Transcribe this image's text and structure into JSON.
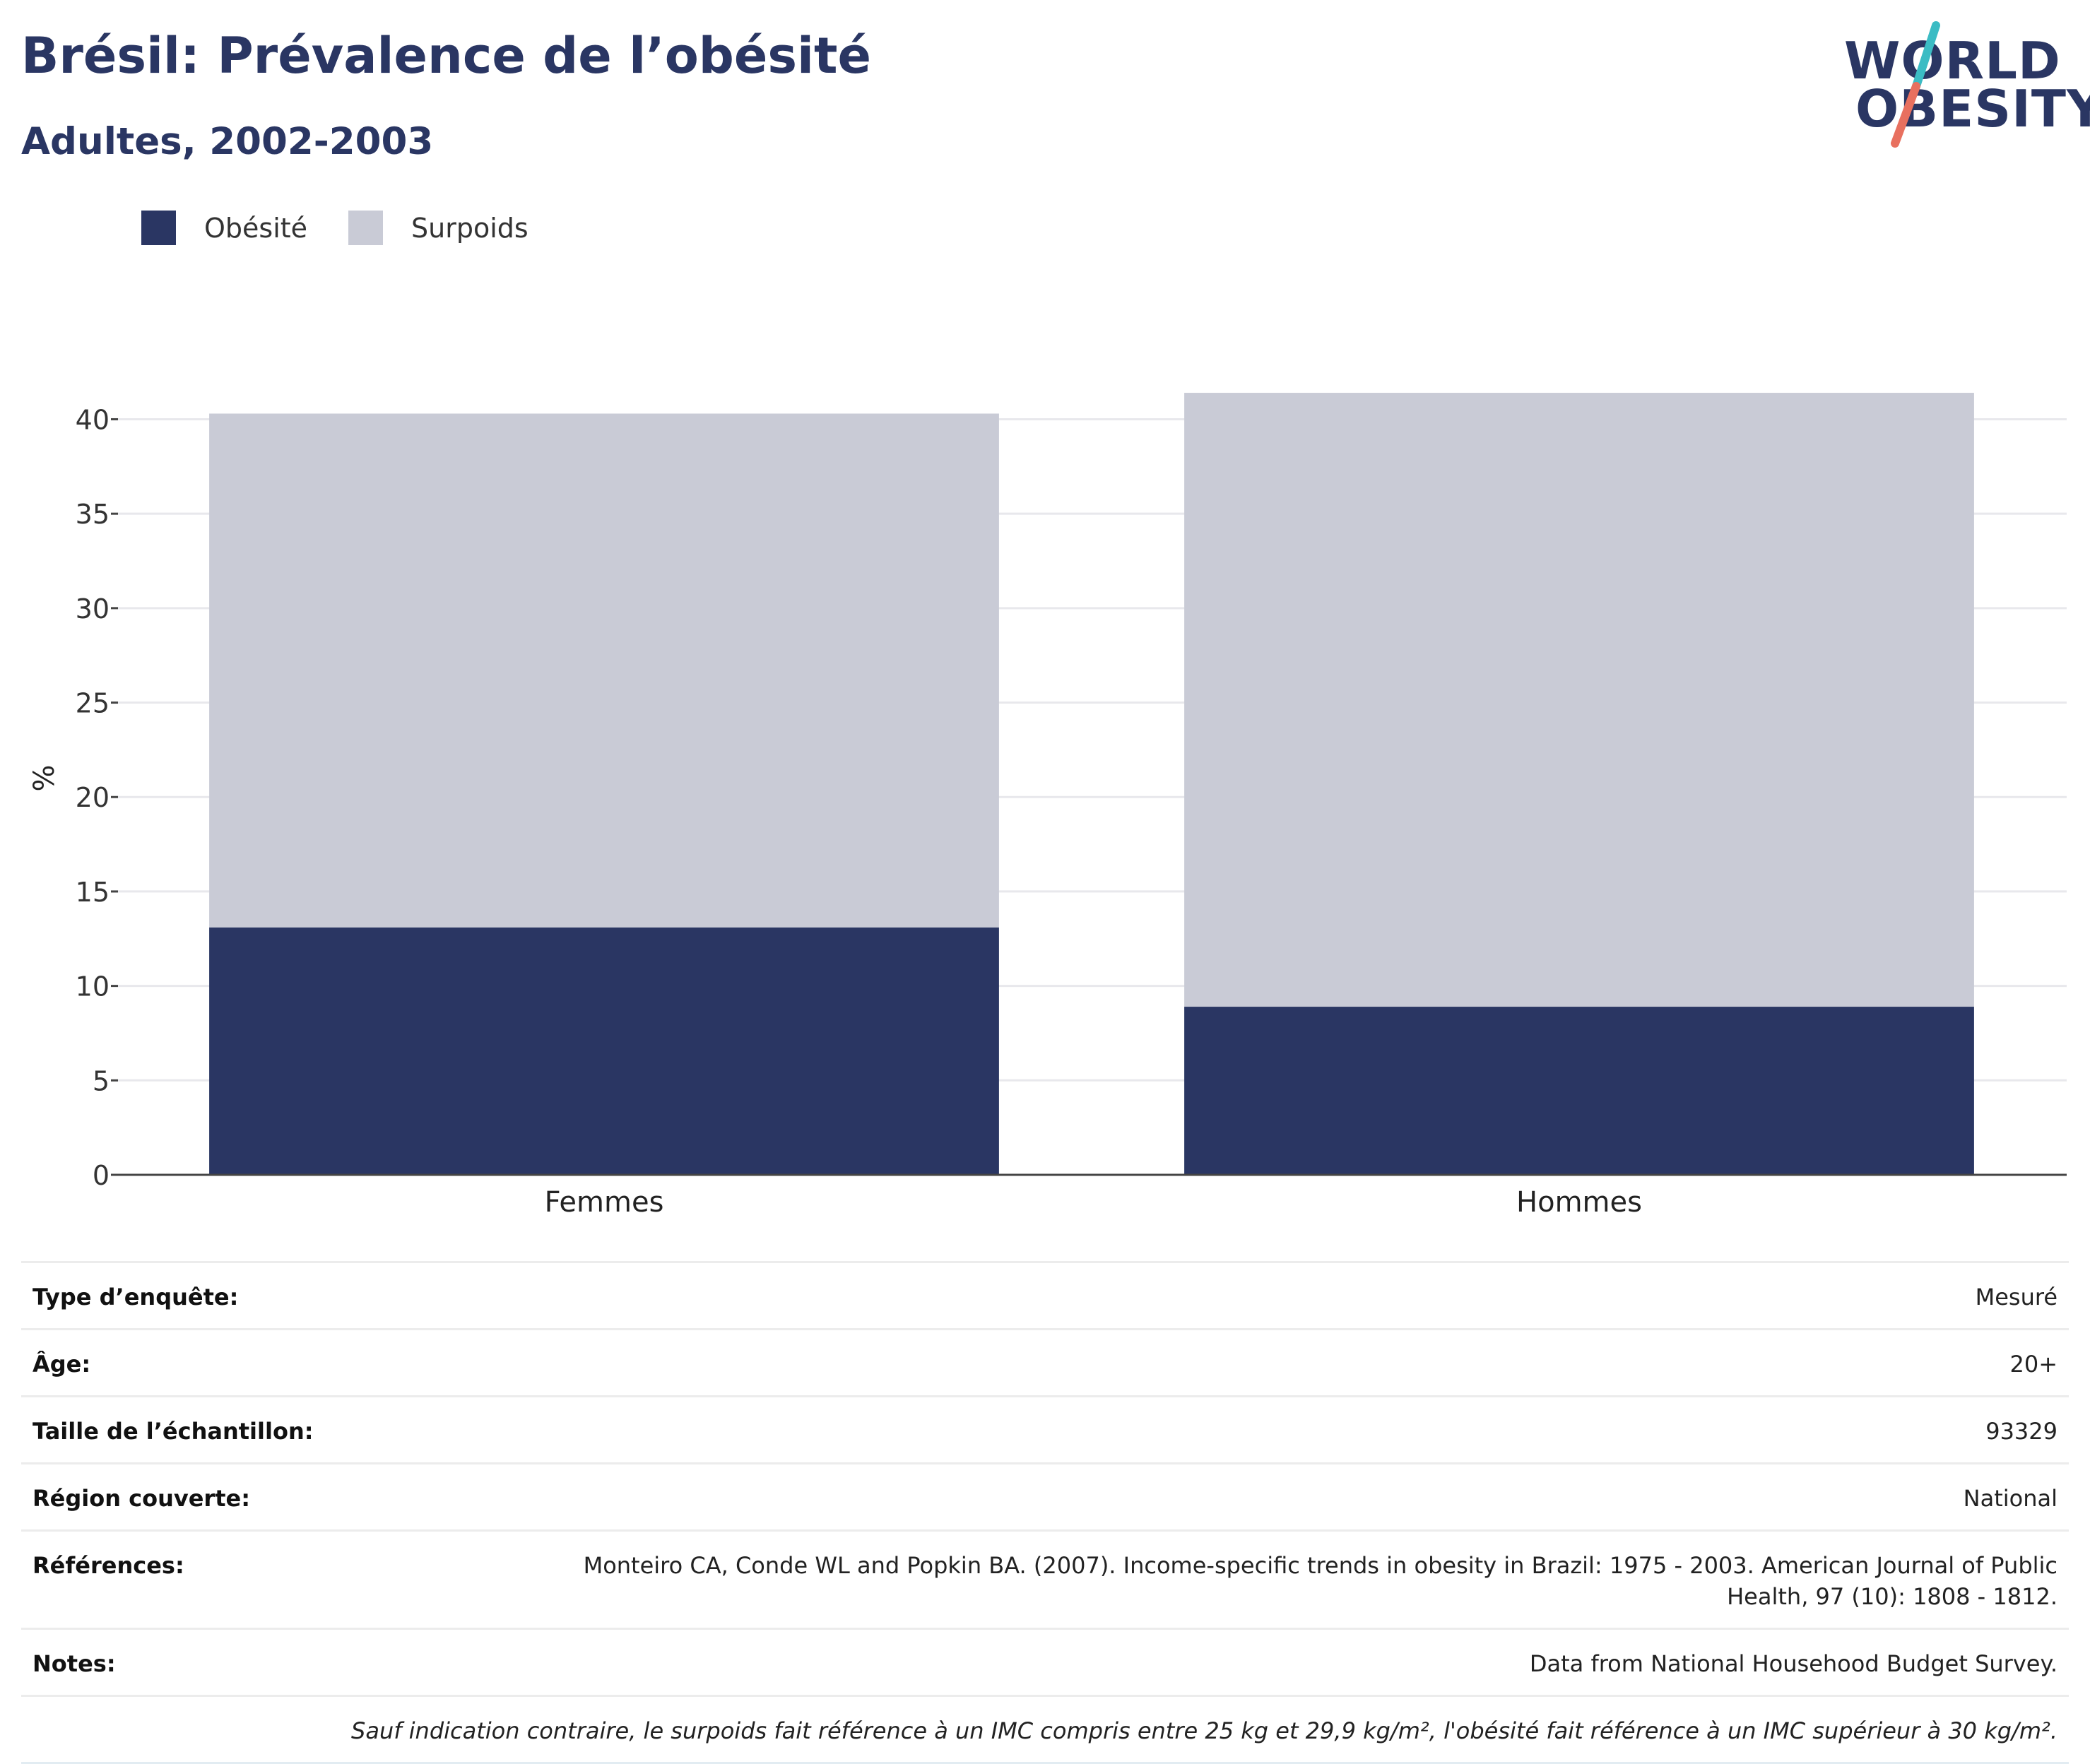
{
  "header": {
    "title": "Brésil: Prévalence de l’obésité",
    "subtitle": "Adultes, 2002-2003"
  },
  "logo": {
    "line1": "WORLD",
    "line2": "OBESITY",
    "accent_teal": "#3bbcc4",
    "accent_coral": "#e8705f"
  },
  "legend": [
    {
      "label": "Obésité",
      "color": "#2a3663"
    },
    {
      "label": "Surpoids",
      "color": "#c9cbd6"
    }
  ],
  "chart_data": {
    "type": "bar",
    "stacked": true,
    "categories": [
      "Femmes",
      "Hommes"
    ],
    "series": [
      {
        "name": "Obésité",
        "values": [
          13.1,
          8.9
        ],
        "color": "#2a3663"
      },
      {
        "name": "Surpoids",
        "values": [
          27.2,
          32.5
        ],
        "color": "#c9cbd6"
      }
    ],
    "ylabel": "%",
    "ylim": [
      0,
      42
    ],
    "yticks": [
      0,
      5,
      10,
      15,
      20,
      25,
      30,
      35,
      40
    ],
    "grid": true,
    "legend_position": "top-left"
  },
  "details": [
    {
      "label": "Type d’enquête:",
      "value": "Mesuré"
    },
    {
      "label": "Âge:",
      "value": "20+"
    },
    {
      "label": "Taille de l’échantillon:",
      "value": "93329"
    },
    {
      "label": "Région couverte:",
      "value": "National"
    },
    {
      "label": "Références:",
      "value": "Monteiro CA, Conde WL and Popkin BA. (2007). Income-specific trends in obesity in Brazil: 1975 - 2003. American Journal of Public Health, 97 (10): 1808 - 1812."
    },
    {
      "label": "Notes:",
      "value": "Data from National Househood Budget Survey."
    }
  ],
  "footnote": "Sauf indication contraire, le surpoids fait référence à un IMC compris entre 25 kg et 29,9 kg/m², l'obésité fait référence à un IMC supérieur à 30 kg/m²."
}
